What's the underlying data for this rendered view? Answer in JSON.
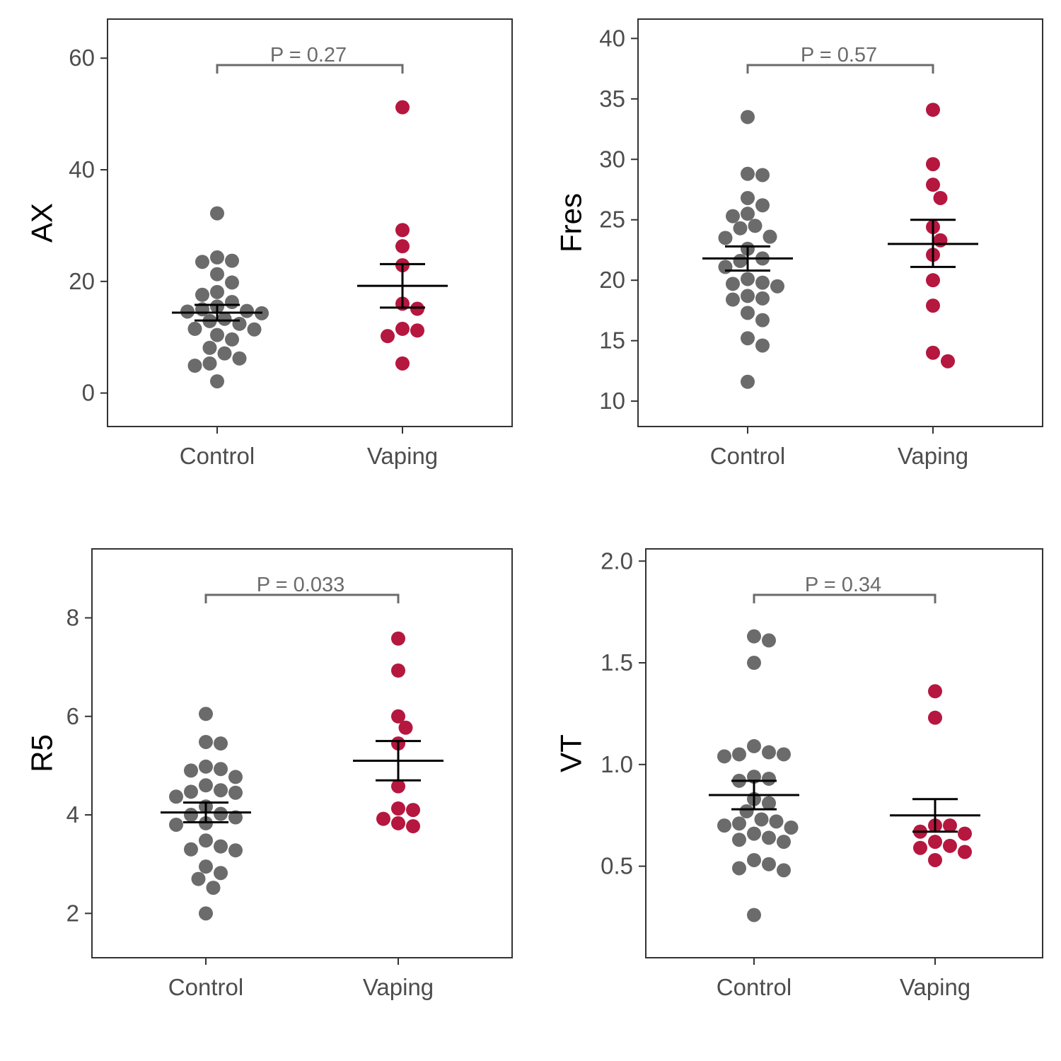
{
  "colors": {
    "Control": "#6b6b6b",
    "Vaping": "#b5173f"
  },
  "chart_data": [
    {
      "type": "scatter",
      "ylabel": "AX",
      "categories": [
        "Control",
        "Vaping"
      ],
      "ylim": [
        -6,
        67
      ],
      "yticks": [
        0,
        20,
        40,
        60
      ],
      "p_label": "P = 0.27",
      "series": [
        {
          "group": "Control",
          "mean": 14.4,
          "se_low": 13.0,
          "se_high": 15.8,
          "points": [
            32.2,
            24.3,
            23.7,
            23.5,
            21.3,
            19.8,
            18.1,
            17.6,
            16.3,
            15.5,
            15.0,
            14.7,
            14.6,
            14.3,
            13.3,
            12.9,
            12.4,
            11.5,
            11.4,
            10.4,
            9.6,
            8.1,
            7.1,
            6.2,
            5.3,
            4.9,
            2.1
          ]
        },
        {
          "group": "Vaping",
          "mean": 19.2,
          "se_low": 15.3,
          "se_high": 23.1,
          "points": [
            51.2,
            29.2,
            26.3,
            22.9,
            16.0,
            15.1,
            11.5,
            11.2,
            10.2,
            5.3
          ]
        }
      ]
    },
    {
      "type": "scatter",
      "ylabel": "Fres",
      "categories": [
        "Control",
        "Vaping"
      ],
      "ylim": [
        7.9,
        41.6
      ],
      "yticks": [
        10,
        15,
        20,
        25,
        30,
        35,
        40
      ],
      "p_label": "P = 0.57",
      "series": [
        {
          "group": "Control",
          "mean": 21.8,
          "se_low": 20.8,
          "se_high": 22.8,
          "points": [
            33.5,
            28.8,
            28.7,
            26.8,
            26.2,
            25.5,
            25.3,
            24.5,
            24.3,
            23.6,
            23.5,
            22.6,
            21.8,
            21.6,
            21.1,
            20.1,
            19.8,
            19.7,
            19.5,
            18.7,
            18.5,
            18.4,
            17.3,
            16.7,
            15.2,
            14.6,
            11.6
          ]
        },
        {
          "group": "Vaping",
          "mean": 23.0,
          "se_low": 21.1,
          "se_high": 25.0,
          "points": [
            34.1,
            29.6,
            27.9,
            26.8,
            24.4,
            23.3,
            22.1,
            20.0,
            17.9,
            14.0,
            13.3
          ]
        }
      ]
    },
    {
      "type": "scatter",
      "ylabel": "R5",
      "categories": [
        "Control",
        "Vaping"
      ],
      "ylim": [
        1.1,
        9.4
      ],
      "yticks": [
        2,
        4,
        6,
        8
      ],
      "p_label": "P = 0.033",
      "series": [
        {
          "group": "Control",
          "mean": 4.05,
          "se_low": 3.85,
          "se_high": 4.25,
          "points": [
            6.05,
            5.48,
            5.45,
            4.98,
            4.93,
            4.9,
            4.77,
            4.6,
            4.5,
            4.47,
            4.45,
            4.37,
            4.17,
            4.02,
            4.0,
            3.95,
            3.83,
            3.8,
            3.48,
            3.36,
            3.3,
            3.28,
            2.95,
            2.82,
            2.7,
            2.52,
            2.0
          ]
        },
        {
          "group": "Vaping",
          "mean": 5.1,
          "se_low": 4.7,
          "se_high": 5.5,
          "points": [
            7.58,
            6.93,
            6.0,
            5.77,
            5.45,
            4.58,
            4.13,
            4.1,
            3.92,
            3.83,
            3.77
          ]
        }
      ]
    },
    {
      "type": "scatter",
      "ylabel": "VT",
      "categories": [
        "Control",
        "Vaping"
      ],
      "ylim": [
        0.05,
        2.06
      ],
      "yticks": [
        0.5,
        1.0,
        1.5,
        2.0
      ],
      "ytick_labels": [
        "0.5",
        "1.0",
        "1.5",
        "2.0"
      ],
      "p_label": "P = 0.34",
      "series": [
        {
          "group": "Control",
          "mean": 0.85,
          "se_low": 0.78,
          "se_high": 0.92,
          "points": [
            1.63,
            1.61,
            1.5,
            1.09,
            1.06,
            1.05,
            1.05,
            1.04,
            0.94,
            0.93,
            0.92,
            0.83,
            0.81,
            0.77,
            0.73,
            0.72,
            0.71,
            0.7,
            0.69,
            0.66,
            0.64,
            0.63,
            0.62,
            0.53,
            0.51,
            0.49,
            0.48,
            0.26
          ]
        },
        {
          "group": "Vaping",
          "mean": 0.75,
          "se_low": 0.67,
          "se_high": 0.83,
          "points": [
            1.36,
            1.23,
            0.7,
            0.7,
            0.67,
            0.66,
            0.62,
            0.6,
            0.59,
            0.57,
            0.53
          ]
        }
      ]
    }
  ]
}
